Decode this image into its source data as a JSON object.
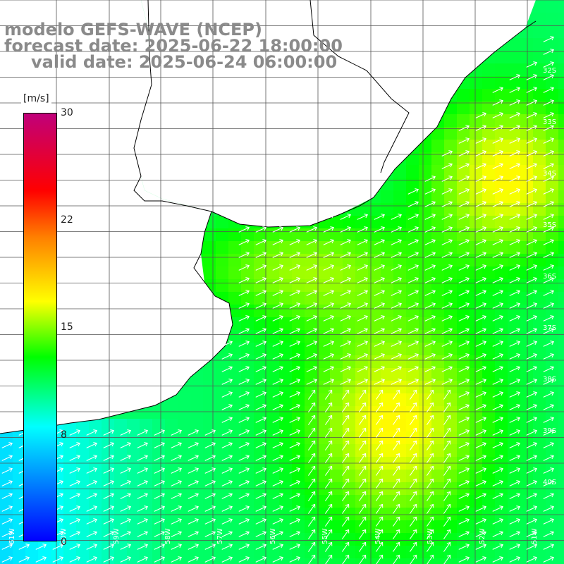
{
  "title": {
    "line1": "modelo GEFS-WAVE (NCEP)",
    "line2": "forecast date: 2025-06-22 18:00:00",
    "line3": "valid date: 2025-06-24 06:00:00"
  },
  "colorbar": {
    "unit": "[m/s]",
    "ticks": [
      "30",
      "22",
      "15",
      "8",
      "0"
    ],
    "min": 0,
    "max": 30,
    "colors": [
      "#0000ff",
      "#00ffff",
      "#00ff00",
      "#ffff00",
      "#ff8000",
      "#ff0000",
      "#c0007a"
    ]
  },
  "map": {
    "lat_labels": [
      "32S",
      "33S",
      "34S",
      "35S",
      "36S",
      "37S",
      "38S",
      "39S",
      "40S"
    ],
    "lon_labels": [
      "61W",
      "60W",
      "59W",
      "58W",
      "57W",
      "56W",
      "55W",
      "54W",
      "53W",
      "52W",
      "51W"
    ],
    "land_color": "#ffffff",
    "grid_color": "#555555",
    "coast_color": "#000000",
    "arrow_color": "#ffffff"
  }
}
